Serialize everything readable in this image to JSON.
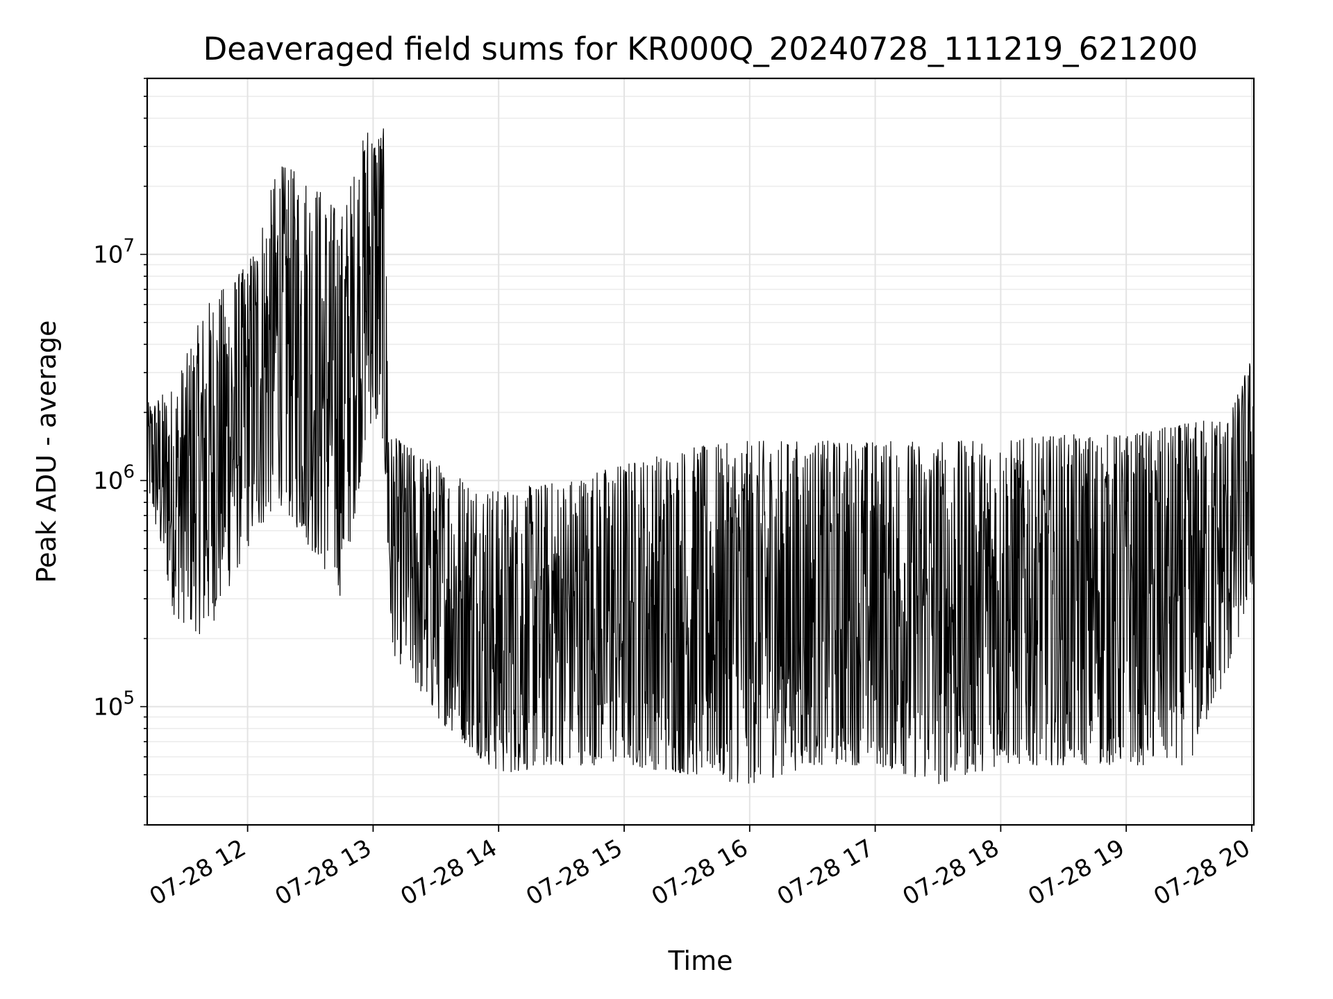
{
  "chart_data": {
    "type": "line",
    "title": "Deaveraged field sums for KR000Q_20240728_111219_621200",
    "xlabel": "Time",
    "ylabel": "Peak ADU - average",
    "yscale": "log",
    "ylim": [
      30000,
      60000000
    ],
    "xlim": [
      "07-28 11:12",
      "07-28 20:01"
    ],
    "grid": "on (major and minor)",
    "line_color": "#000000",
    "x_ticks": [
      {
        "time": "07-28 12:00",
        "label": "07-28 12"
      },
      {
        "time": "07-28 13:00",
        "label": "07-28 13"
      },
      {
        "time": "07-28 14:00",
        "label": "07-28 14"
      },
      {
        "time": "07-28 15:00",
        "label": "07-28 15"
      },
      {
        "time": "07-28 16:00",
        "label": "07-28 16"
      },
      {
        "time": "07-28 17:00",
        "label": "07-28 17"
      },
      {
        "time": "07-28 18:00",
        "label": "07-28 18"
      },
      {
        "time": "07-28 19:00",
        "label": "07-28 19"
      },
      {
        "time": "07-28 20:00",
        "label": "07-28 20"
      }
    ],
    "y_ticks": [
      {
        "value": 100000,
        "base": "10",
        "exp": "5"
      },
      {
        "value": 1000000,
        "base": "10",
        "exp": "6"
      },
      {
        "value": 10000000,
        "base": "10",
        "exp": "7"
      }
    ],
    "series": [
      {
        "envelope": [
          {
            "time": "07-28 11:12",
            "low": 900000,
            "high": 2200000
          },
          {
            "time": "07-28 11:25",
            "low": 250000,
            "high": 2600000
          },
          {
            "time": "07-28 11:40",
            "low": 200000,
            "high": 6000000
          },
          {
            "time": "07-28 12:00",
            "low": 500000,
            "high": 9000000
          },
          {
            "time": "07-28 12:15",
            "low": 800000,
            "high": 25000000
          },
          {
            "time": "07-28 12:30",
            "low": 500000,
            "high": 22000000
          },
          {
            "time": "07-28 12:45",
            "low": 300000,
            "high": 15000000
          },
          {
            "time": "07-28 12:58",
            "low": 1800000,
            "high": 40000000
          },
          {
            "time": "07-28 13:05",
            "low": 1500000,
            "high": 36000000
          },
          {
            "time": "07-28 13:08",
            "low": 180000,
            "high": 1600000
          },
          {
            "time": "07-28 13:30",
            "low": 90000,
            "high": 1200000
          },
          {
            "time": "07-28 14:00",
            "low": 50000,
            "high": 900000
          },
          {
            "time": "07-28 14:30",
            "low": 55000,
            "high": 1000000
          },
          {
            "time": "07-28 15:00",
            "low": 55000,
            "high": 1200000
          },
          {
            "time": "07-28 15:30",
            "low": 50000,
            "high": 1400000
          },
          {
            "time": "07-28 16:00",
            "low": 45000,
            "high": 1500000
          },
          {
            "time": "07-28 16:30",
            "low": 55000,
            "high": 1500000
          },
          {
            "time": "07-28 17:00",
            "low": 55000,
            "high": 1500000
          },
          {
            "time": "07-28 17:30",
            "low": 45000,
            "high": 1500000
          },
          {
            "time": "07-28 18:00",
            "low": 55000,
            "high": 1500000
          },
          {
            "time": "07-28 18:30",
            "low": 55000,
            "high": 1600000
          },
          {
            "time": "07-28 19:00",
            "low": 55000,
            "high": 1600000
          },
          {
            "time": "07-28 19:30",
            "low": 55000,
            "high": 1800000
          },
          {
            "time": "07-28 19:50",
            "low": 150000,
            "high": 2000000
          },
          {
            "time": "07-28 20:01",
            "low": 350000,
            "high": 3800000
          }
        ]
      }
    ]
  }
}
